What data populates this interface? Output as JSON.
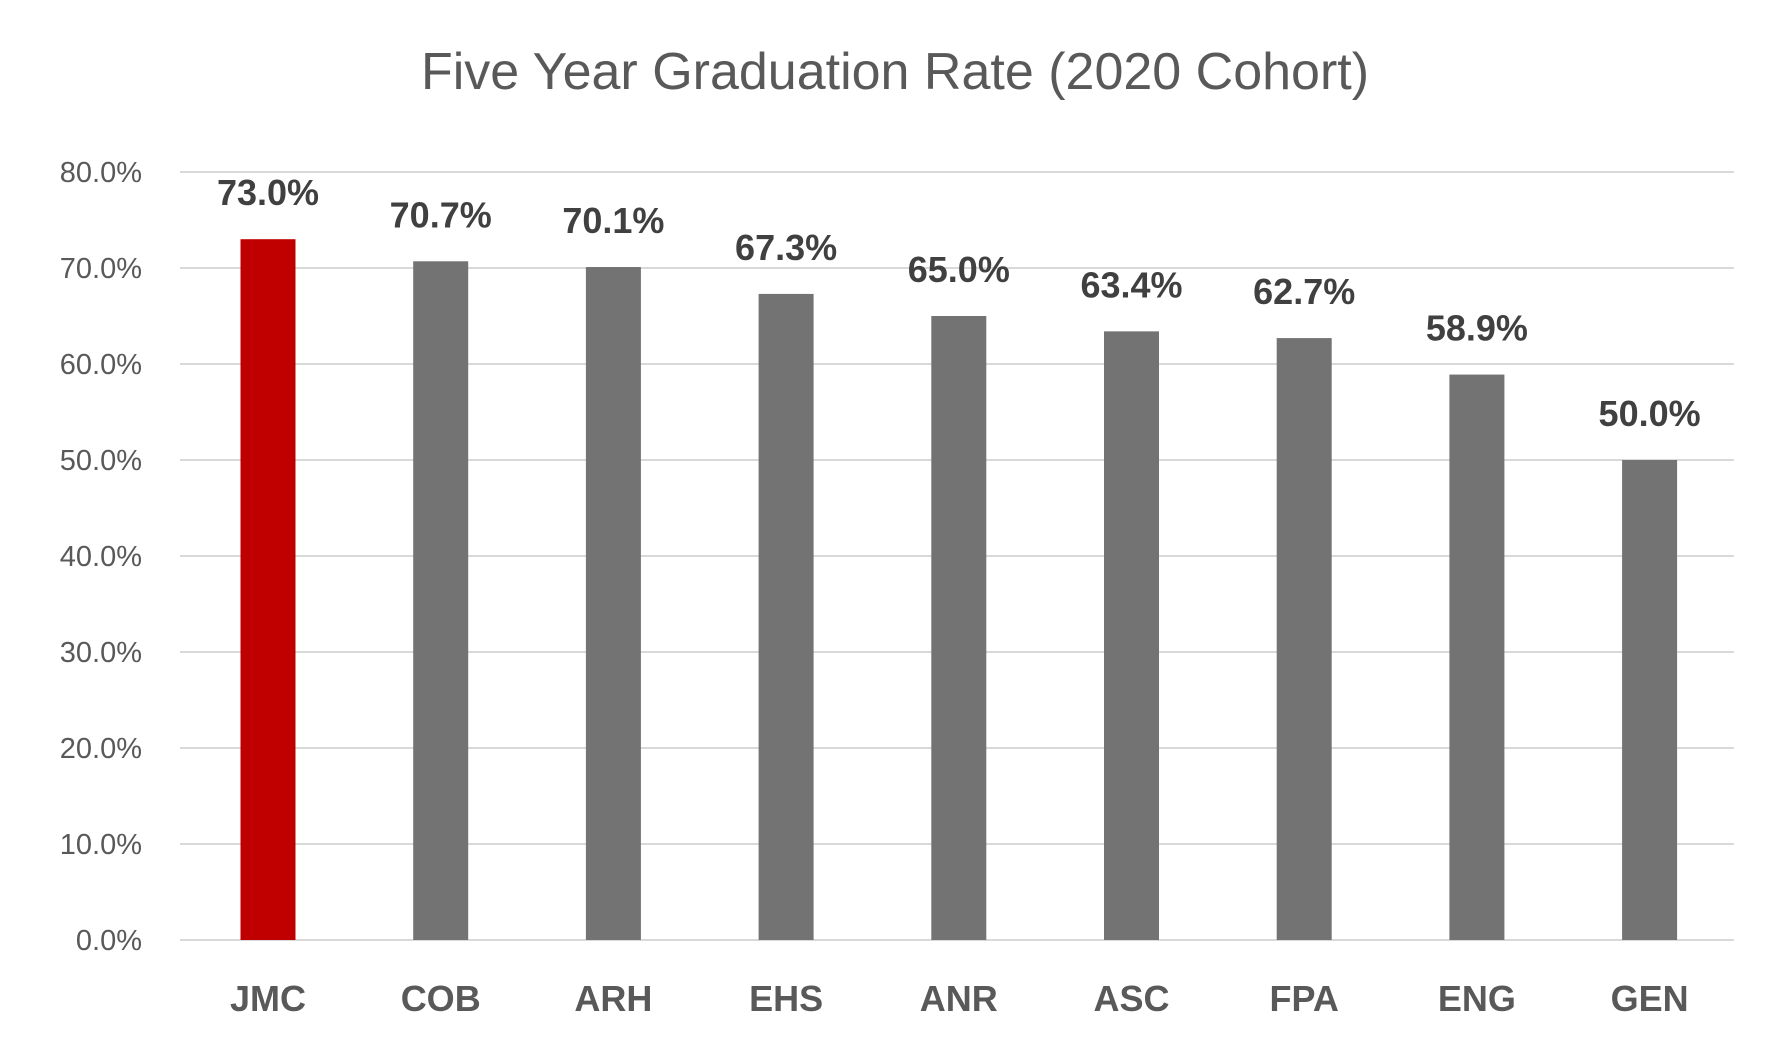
{
  "chart_data": {
    "type": "bar",
    "title": "Five Year Graduation Rate (2020 Cohort)",
    "xlabel": "",
    "ylabel": "",
    "categories": [
      "JMC",
      "COB",
      "ARH",
      "EHS",
      "ANR",
      "ASC",
      "FPA",
      "ENG",
      "GEN"
    ],
    "values": [
      73.0,
      70.7,
      70.1,
      67.3,
      65.0,
      63.4,
      62.7,
      58.9,
      50.0
    ],
    "data_labels": [
      "73.0%",
      "70.7%",
      "70.1%",
      "67.3%",
      "65.0%",
      "63.4%",
      "62.7%",
      "58.9%",
      "50.0%"
    ],
    "ylim": [
      0,
      80
    ],
    "yticks": [
      "0.0%",
      "10.0%",
      "20.0%",
      "30.0%",
      "40.0%",
      "50.0%",
      "60.0%",
      "70.0%",
      "80.0%"
    ],
    "grid": true,
    "legend": "none",
    "colors": {
      "highlight": "#C00000",
      "default": "#737373",
      "grid": "#D9D9D9"
    },
    "highlight_index": 0
  }
}
